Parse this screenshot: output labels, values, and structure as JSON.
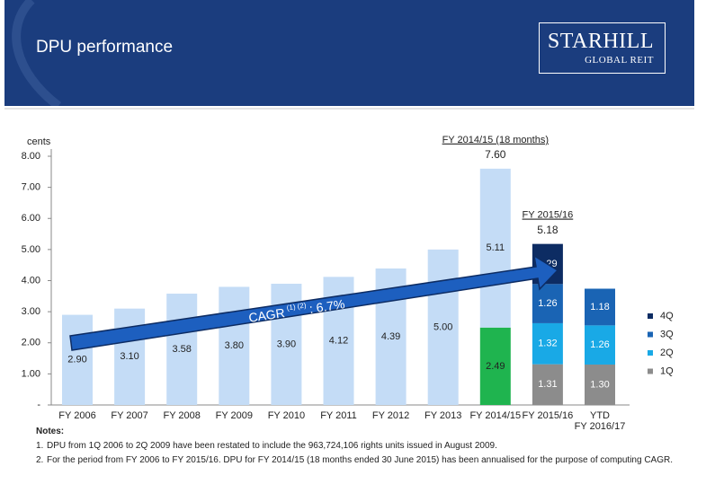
{
  "header": {
    "title": "DPU performance",
    "logo": {
      "name": "STARHILL",
      "tagline": "GLOBAL REIT"
    }
  },
  "chart_data": {
    "type": "stacked-bar",
    "y_label": "cents",
    "categories": [
      "FY 2006",
      "FY 2007",
      "FY 2008",
      "FY 2009",
      "FY 2010",
      "FY 2011",
      "FY 2012",
      "FY 2013",
      "FY 2014/15",
      "FY 2015/16",
      "YTD\nFY 2016/17"
    ],
    "ylim": [
      0,
      8
    ],
    "yticks": [
      {
        "value": 0,
        "label": "-"
      },
      {
        "value": 1,
        "label": "1.00"
      },
      {
        "value": 2,
        "label": "2.00"
      },
      {
        "value": 3,
        "label": "3.00"
      },
      {
        "value": 4,
        "label": "4.00"
      },
      {
        "value": 5,
        "label": "5.00"
      },
      {
        "value": 6,
        "label": "6.00"
      },
      {
        "value": 7,
        "label": "7.00"
      },
      {
        "value": 8,
        "label": "8.00"
      }
    ],
    "series": [
      {
        "name": "1Q",
        "color": "#8c8c8c",
        "label_color": "#ffffff",
        "values": [
          null,
          null,
          null,
          null,
          null,
          null,
          null,
          null,
          null,
          1.31,
          1.3
        ],
        "value_labels": [
          null,
          null,
          null,
          null,
          null,
          null,
          null,
          null,
          null,
          "1.31",
          "1.30"
        ]
      },
      {
        "name": "2Q",
        "color": "#19a9e6",
        "label_color": "#ffffff",
        "values": [
          null,
          null,
          null,
          null,
          null,
          null,
          null,
          null,
          null,
          1.32,
          1.26
        ],
        "value_labels": [
          null,
          null,
          null,
          null,
          null,
          null,
          null,
          null,
          null,
          "1.32",
          "1.26"
        ]
      },
      {
        "name": "3Q",
        "color": "#1a64b4",
        "label_color": "#ffffff",
        "values": [
          null,
          null,
          null,
          null,
          null,
          null,
          null,
          null,
          null,
          1.26,
          1.18
        ],
        "value_labels": [
          null,
          null,
          null,
          null,
          null,
          null,
          null,
          null,
          null,
          "1.26",
          "1.18"
        ]
      },
      {
        "name": "4Q",
        "color": "#0d2c63",
        "label_color": "#ffffff",
        "values": [
          null,
          null,
          null,
          null,
          null,
          null,
          null,
          null,
          null,
          1.29,
          null
        ],
        "value_labels": [
          null,
          null,
          null,
          null,
          null,
          null,
          null,
          null,
          null,
          "1.29",
          null
        ]
      },
      {
        "color": "#1fb44f",
        "label_color": "#222222",
        "values": [
          null,
          null,
          null,
          null,
          null,
          null,
          null,
          null,
          2.49,
          null,
          null
        ],
        "value_labels": [
          null,
          null,
          null,
          null,
          null,
          null,
          null,
          null,
          "2.49",
          null,
          null
        ]
      },
      {
        "color": "#c4dcf6",
        "label_color": "#222222",
        "values": [
          2.9,
          3.1,
          3.58,
          3.8,
          3.9,
          4.12,
          4.39,
          5.0,
          5.11,
          null,
          null
        ],
        "value_labels": [
          "2.90",
          "3.10",
          "3.58",
          "3.80",
          "3.90",
          "4.12",
          "4.39",
          "5.00",
          "5.11",
          null,
          null
        ]
      }
    ],
    "headers": [
      null,
      null,
      null,
      null,
      null,
      null,
      null,
      null,
      "FY 2014/15 (18 months)",
      "FY 2015/16",
      null
    ],
    "totals": [
      null,
      null,
      null,
      null,
      null,
      null,
      null,
      null,
      7.6,
      5.18,
      null
    ],
    "total_labels": [
      null,
      null,
      null,
      null,
      null,
      null,
      null,
      null,
      "7.60",
      "5.18",
      null
    ],
    "cagr": {
      "label": "CAGR",
      "notes": "(1) (2)",
      "value": ": 6.7%"
    }
  },
  "notes": {
    "title": "Notes:",
    "items": [
      {
        "number": "1.",
        "text": "DPU from 1Q 2006 to 2Q 2009 have been restated to include the 963,724,106 rights units issued in August 2009."
      },
      {
        "number": "2.",
        "text": "For the period from FY 2006 to FY 2015/16. DPU for FY 2014/15 (18 months ended 30 June 2015) has been annualised for the purpose of computing CAGR."
      }
    ]
  }
}
